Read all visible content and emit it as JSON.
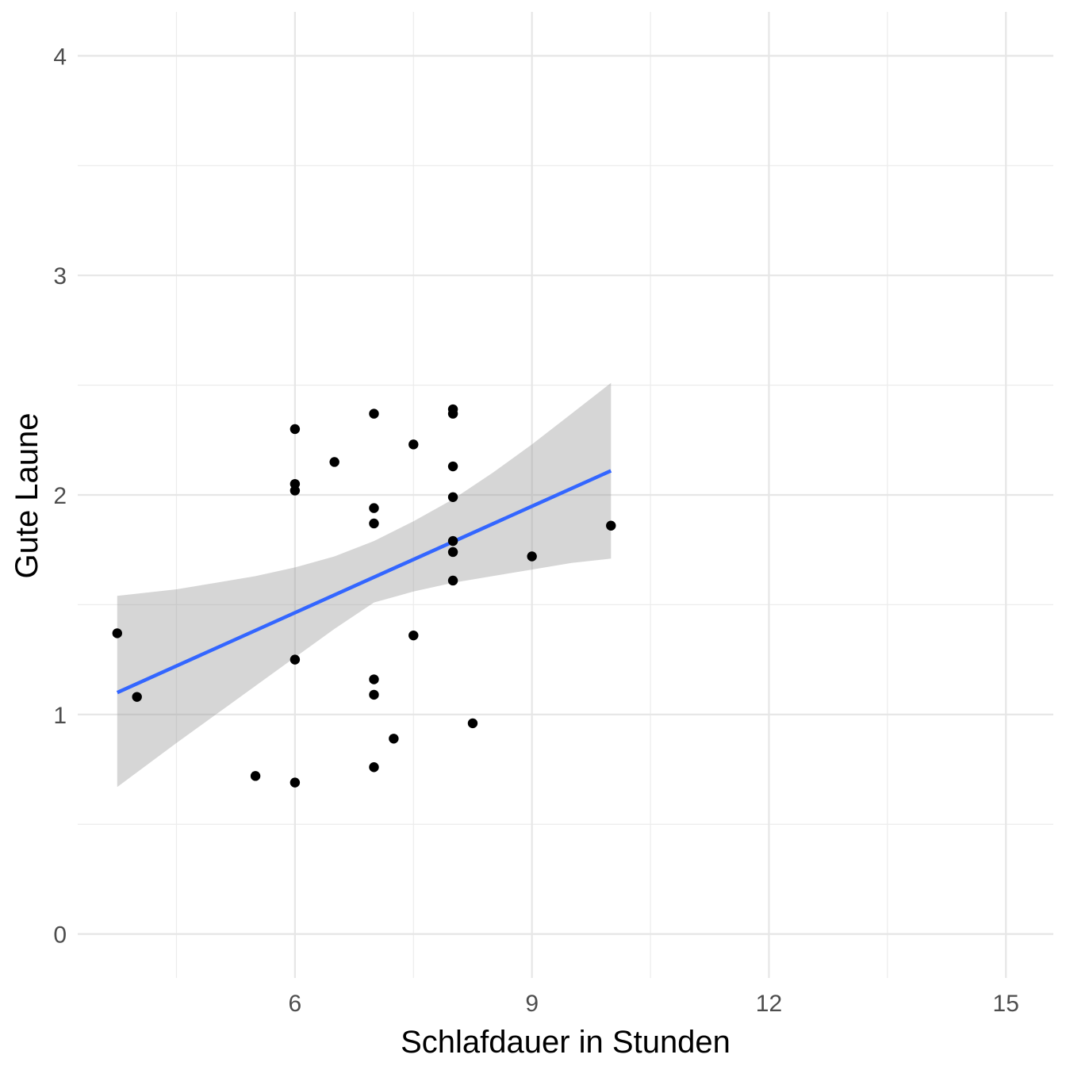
{
  "chart_data": {
    "type": "scatter",
    "title": "",
    "xlabel": "Schlafdauer in Stunden",
    "ylabel": "Gute Laune",
    "xlim": [
      3.25,
      15.6
    ],
    "ylim": [
      -0.2,
      4.2
    ],
    "x_ticks": [
      6,
      9,
      12,
      15
    ],
    "x_tick_labels": [
      "6",
      "9",
      "12",
      "15"
    ],
    "x_minor_ticks": [
      4.5,
      7.5,
      10.5,
      13.5
    ],
    "y_ticks": [
      0,
      1,
      2,
      3,
      4
    ],
    "y_tick_labels": [
      "0",
      "1",
      "2",
      "3",
      "4"
    ],
    "y_minor_ticks": [
      0.5,
      1.5,
      2.5,
      3.5
    ],
    "grid": true,
    "colors": {
      "points": "#000000",
      "fit_line": "#3366ff",
      "confidence_band": "#999999"
    },
    "points": [
      {
        "x": 3.75,
        "y": 1.37
      },
      {
        "x": 4.0,
        "y": 1.08
      },
      {
        "x": 5.5,
        "y": 0.72
      },
      {
        "x": 6.0,
        "y": 2.3
      },
      {
        "x": 6.0,
        "y": 2.05
      },
      {
        "x": 6.0,
        "y": 2.02
      },
      {
        "x": 6.0,
        "y": 1.25
      },
      {
        "x": 6.0,
        "y": 0.69
      },
      {
        "x": 6.5,
        "y": 2.15
      },
      {
        "x": 7.0,
        "y": 2.37
      },
      {
        "x": 7.0,
        "y": 1.94
      },
      {
        "x": 7.0,
        "y": 1.87
      },
      {
        "x": 7.0,
        "y": 1.16
      },
      {
        "x": 7.0,
        "y": 1.09
      },
      {
        "x": 7.0,
        "y": 0.76
      },
      {
        "x": 7.25,
        "y": 0.89
      },
      {
        "x": 7.5,
        "y": 2.23
      },
      {
        "x": 7.5,
        "y": 1.36
      },
      {
        "x": 8.0,
        "y": 2.39
      },
      {
        "x": 8.0,
        "y": 2.37
      },
      {
        "x": 8.0,
        "y": 2.13
      },
      {
        "x": 8.0,
        "y": 1.99
      },
      {
        "x": 8.0,
        "y": 1.79
      },
      {
        "x": 8.0,
        "y": 1.74
      },
      {
        "x": 8.0,
        "y": 1.61
      },
      {
        "x": 8.25,
        "y": 0.96
      },
      {
        "x": 9.0,
        "y": 1.72
      },
      {
        "x": 10.0,
        "y": 1.86
      }
    ],
    "fit": {
      "method": "lm",
      "x": [
        3.75,
        10.0
      ],
      "y": [
        1.1,
        2.11
      ]
    },
    "confidence_band": {
      "x": [
        3.75,
        4.5,
        5.0,
        5.5,
        6.0,
        6.5,
        7.0,
        7.5,
        8.0,
        8.5,
        9.0,
        9.5,
        10.0
      ],
      "upper": [
        1.54,
        1.57,
        1.6,
        1.63,
        1.67,
        1.72,
        1.79,
        1.88,
        1.98,
        2.1,
        2.23,
        2.37,
        2.51
      ],
      "lower": [
        0.67,
        0.87,
        1.0,
        1.13,
        1.26,
        1.39,
        1.51,
        1.56,
        1.6,
        1.63,
        1.66,
        1.69,
        1.71
      ]
    }
  }
}
